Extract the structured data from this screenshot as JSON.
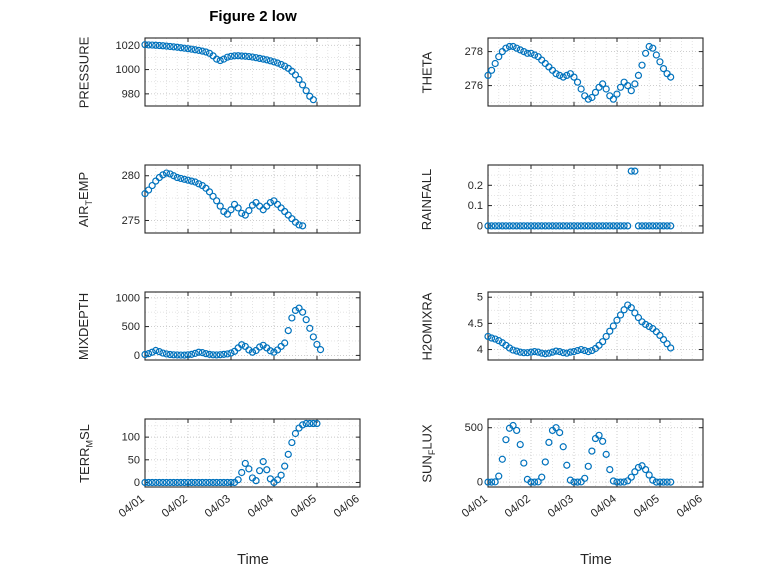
{
  "title": "Figure 2 low",
  "xlabel": "Time",
  "colors": {
    "marker": "#0072BD",
    "axis": "#262626",
    "grid_major": "#c6c6c6",
    "grid_minor": "#e0e0e0"
  },
  "x_tick_positions": [
    0,
    1,
    2,
    3,
    4,
    5
  ],
  "x_tick_labels": [
    "04/01",
    "04/02",
    "04/03",
    "04/04",
    "04/05",
    "04/06"
  ],
  "chart_data": [
    {
      "id": "pressure",
      "type": "scatter",
      "title": "",
      "ylabel": "PRESSURE",
      "ylabel_parts": [
        {
          "t": "PRESSURE"
        }
      ],
      "xlim": [
        0,
        5
      ],
      "ylim": [
        970,
        1026
      ],
      "yticks": [
        980,
        1000,
        1020
      ],
      "show_x_tick_labels": false,
      "x0": 0,
      "dx": 0.0833,
      "y": [
        1020.5,
        1020.3,
        1020.2,
        1020.0,
        1019.8,
        1019.6,
        1019.3,
        1019.0,
        1018.7,
        1018.4,
        1018.0,
        1017.6,
        1017.2,
        1016.8,
        1016.3,
        1015.8,
        1015.2,
        1014.5,
        1013.4,
        1011.3,
        1008.6,
        1007.4,
        1008.6,
        1010.2,
        1010.9,
        1011.3,
        1011.4,
        1011.2,
        1011.0,
        1010.7,
        1010.3,
        1009.8,
        1009.2,
        1008.6,
        1008.0,
        1007.2,
        1006.4,
        1005.4,
        1004.2,
        1002.8,
        1001.0,
        998.6,
        995.6,
        991.8,
        987.4,
        982.6,
        978.0,
        975.2
      ]
    },
    {
      "id": "theta",
      "type": "scatter",
      "title": "",
      "ylabel": "THETA",
      "ylabel_parts": [
        {
          "t": "THETA"
        }
      ],
      "xlim": [
        0,
        5
      ],
      "ylim": [
        274.8,
        278.8
      ],
      "yticks": [
        276,
        278
      ],
      "show_x_tick_labels": false,
      "x0": 0,
      "dx": 0.0833,
      "y": [
        276.6,
        276.9,
        277.3,
        277.7,
        278.0,
        278.2,
        278.3,
        278.3,
        278.2,
        278.1,
        278.0,
        277.9,
        277.9,
        277.8,
        277.7,
        277.5,
        277.3,
        277.1,
        276.9,
        276.7,
        276.6,
        276.5,
        276.6,
        276.7,
        276.5,
        276.2,
        275.8,
        275.4,
        275.2,
        275.3,
        275.6,
        275.9,
        276.1,
        275.8,
        275.4,
        275.2,
        275.5,
        275.9,
        276.2,
        276.0,
        275.7,
        276.1,
        276.6,
        277.2,
        277.9,
        278.3,
        278.2,
        277.8,
        277.4,
        277.0,
        276.7,
        276.5
      ]
    },
    {
      "id": "air-temp",
      "type": "scatter",
      "title": "",
      "ylabel": "AIR_TEMP",
      "ylabel_parts": [
        {
          "t": "AIR"
        },
        {
          "t": "T",
          "sub": true
        },
        {
          "t": "EMP"
        }
      ],
      "xlim": [
        0,
        5
      ],
      "ylim": [
        273.6,
        281.2
      ],
      "yticks": [
        275,
        280
      ],
      "show_x_tick_labels": false,
      "x0": 0,
      "dx": 0.0833,
      "y": [
        278.0,
        278.4,
        278.9,
        279.4,
        279.8,
        280.1,
        280.3,
        280.2,
        280.0,
        279.8,
        279.7,
        279.6,
        279.5,
        279.4,
        279.3,
        279.1,
        278.9,
        278.6,
        278.2,
        277.7,
        277.2,
        276.6,
        276.0,
        275.7,
        276.2,
        276.8,
        276.4,
        275.8,
        275.6,
        276.1,
        276.7,
        277.0,
        276.6,
        276.2,
        276.6,
        277.0,
        277.2,
        276.8,
        276.4,
        276.0,
        275.6,
        275.2,
        274.8,
        274.5,
        274.4
      ]
    },
    {
      "id": "rainfall",
      "type": "scatter",
      "title": "",
      "ylabel": "RAINFALL",
      "ylabel_parts": [
        {
          "t": "RAINFALL"
        }
      ],
      "xlim": [
        0,
        5
      ],
      "ylim": [
        -0.035,
        0.3
      ],
      "yticks": [
        0,
        0.1,
        0.2
      ],
      "show_x_tick_labels": false,
      "x0": 0,
      "dx": 0.0833,
      "y": [
        0,
        0,
        0,
        0,
        0,
        0,
        0,
        0,
        0,
        0,
        0,
        0,
        0,
        0,
        0,
        0,
        0,
        0,
        0,
        0,
        0,
        0,
        0,
        0,
        0,
        0,
        0,
        0,
        0,
        0,
        0,
        0,
        0,
        0,
        0,
        0,
        0,
        0,
        0,
        0,
        0.27,
        0.27,
        0,
        0,
        0,
        0,
        0,
        0,
        0,
        0,
        0,
        0
      ]
    },
    {
      "id": "mixdepth",
      "type": "scatter",
      "title": "",
      "ylabel": "MIXDEPTH",
      "ylabel_parts": [
        {
          "t": "MIXDEPTH"
        }
      ],
      "xlim": [
        0,
        5
      ],
      "ylim": [
        -80,
        1100
      ],
      "yticks": [
        0,
        500,
        1000
      ],
      "show_x_tick_labels": false,
      "x0": 0,
      "dx": 0.0833,
      "y": [
        15,
        30,
        55,
        85,
        65,
        40,
        25,
        15,
        10,
        8,
        6,
        5,
        10,
        18,
        35,
        55,
        48,
        30,
        18,
        10,
        8,
        12,
        18,
        25,
        40,
        70,
        130,
        185,
        155,
        95,
        55,
        85,
        145,
        175,
        130,
        80,
        55,
        95,
        155,
        215,
        430,
        650,
        780,
        820,
        750,
        620,
        470,
        320,
        190,
        100
      ]
    },
    {
      "id": "h2omixra",
      "type": "scatter",
      "title": "",
      "ylabel": "H2OMIXRA",
      "ylabel_parts": [
        {
          "t": "H2OMIXRA"
        }
      ],
      "xlim": [
        0,
        5
      ],
      "ylim": [
        3.8,
        5.1
      ],
      "yticks": [
        4,
        4.5,
        5
      ],
      "show_x_tick_labels": false,
      "x0": 0,
      "dx": 0.0833,
      "y": [
        4.25,
        4.22,
        4.2,
        4.17,
        4.13,
        4.08,
        4.03,
        3.99,
        3.97,
        3.95,
        3.94,
        3.94,
        3.95,
        3.96,
        3.95,
        3.93,
        3.92,
        3.93,
        3.95,
        3.97,
        3.96,
        3.94,
        3.93,
        3.95,
        3.96,
        3.98,
        4.0,
        3.98,
        3.96,
        3.98,
        4.02,
        4.08,
        4.15,
        4.25,
        4.35,
        4.45,
        4.56,
        4.66,
        4.76,
        4.85,
        4.8,
        4.7,
        4.61,
        4.53,
        4.48,
        4.44,
        4.4,
        4.34,
        4.27,
        4.19,
        4.11,
        4.03
      ]
    },
    {
      "id": "terr-msl",
      "type": "scatter",
      "title": "",
      "ylabel": "TERR_MSL",
      "ylabel_parts": [
        {
          "t": "TERR"
        },
        {
          "t": "M",
          "sub": true
        },
        {
          "t": "SL"
        }
      ],
      "xlim": [
        0,
        5
      ],
      "ylim": [
        -10,
        140
      ],
      "yticks": [
        0,
        50,
        100
      ],
      "show_x_tick_labels": true,
      "x0": 0,
      "dx": 0.0833,
      "y": [
        0,
        0,
        0,
        0,
        0,
        0,
        0,
        0,
        0,
        0,
        0,
        0,
        0,
        0,
        0,
        0,
        0,
        0,
        0,
        0,
        0,
        0,
        0,
        0,
        0,
        0,
        6,
        22,
        42,
        30,
        10,
        4,
        26,
        46,
        28,
        8,
        0,
        6,
        16,
        36,
        62,
        88,
        108,
        120,
        127,
        130,
        130,
        130,
        130
      ]
    },
    {
      "id": "sun-flux",
      "type": "scatter",
      "title": "",
      "ylabel": "SUN_FLUX",
      "ylabel_parts": [
        {
          "t": "SUN"
        },
        {
          "t": "F",
          "sub": true
        },
        {
          "t": "LUX"
        }
      ],
      "xlim": [
        0,
        5
      ],
      "ylim": [
        -45,
        580
      ],
      "yticks": [
        0,
        500
      ],
      "show_x_tick_labels": true,
      "x0": 0,
      "dx": 0.0833,
      "y": [
        0,
        0,
        2,
        55,
        210,
        390,
        495,
        520,
        475,
        345,
        175,
        25,
        0,
        0,
        2,
        45,
        185,
        365,
        475,
        500,
        455,
        325,
        155,
        18,
        0,
        0,
        2,
        35,
        145,
        285,
        400,
        430,
        375,
        255,
        115,
        10,
        0,
        0,
        1,
        12,
        45,
        95,
        135,
        150,
        115,
        65,
        18,
        0,
        0,
        0,
        0,
        0
      ]
    }
  ]
}
